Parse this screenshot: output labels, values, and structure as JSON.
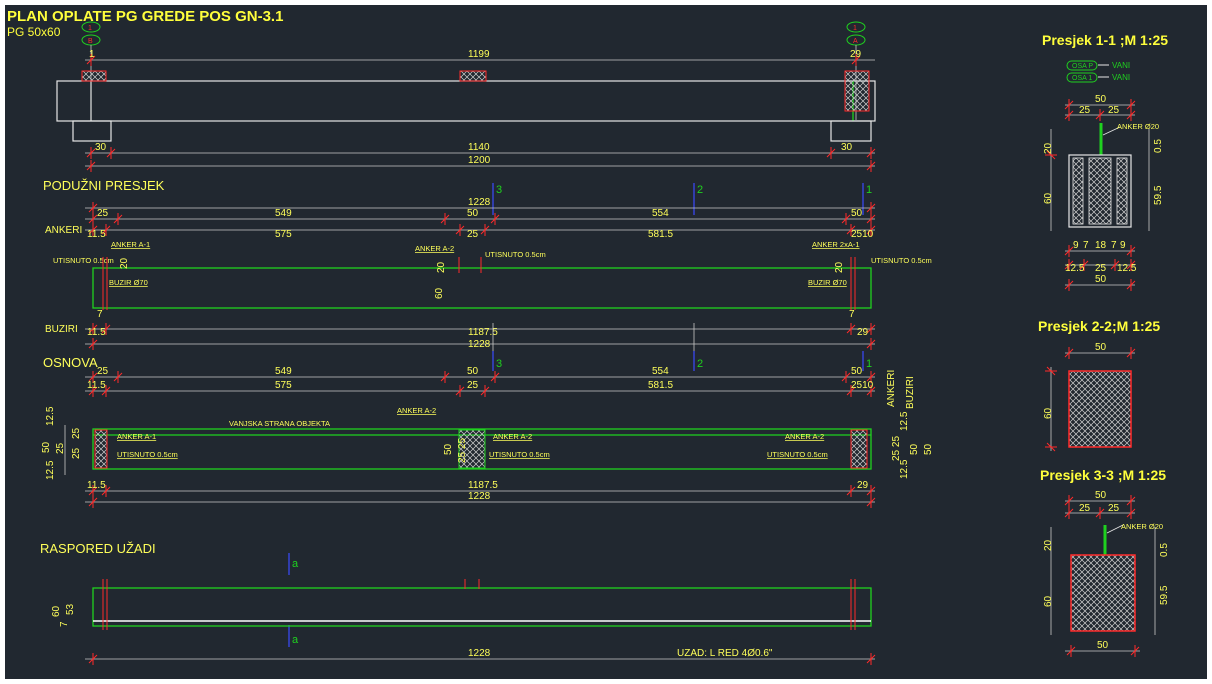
{
  "header": {
    "title": "PLAN OPLATE PG GREDE   POS GN-3.1",
    "subtitle": "PG 50x60"
  },
  "elevation": {
    "axis_top": [
      "1",
      "B",
      "1",
      "A"
    ],
    "dims": {
      "top": "1199",
      "left_mark": "1",
      "right_mark": "29",
      "b1": "30",
      "b2": "1140",
      "b3": "30",
      "total": "1200"
    }
  },
  "longitudinal": {
    "label": "PODUŽNI PRESJEK",
    "section_marks": [
      "3",
      "2",
      "1"
    ],
    "dims_row1": [
      "25",
      "549",
      "50",
      "554",
      "50"
    ],
    "dims_row2_total": "1228",
    "ankeri_label": "ANKERI",
    "ankeri_dims": [
      "11.5",
      "575",
      "25",
      "581.5",
      "2510"
    ],
    "anker_labels": [
      "ANKER A-1",
      "ANKER A-2",
      "ANKER 2xA-1"
    ],
    "utisnuto": [
      "UTISNUTO 0.5cm",
      "UTISNUTO 0.5cm",
      "UTISNUTO 0.5cm"
    ],
    "buzir": [
      "BUZIR Ø70",
      "BUZIR Ø70"
    ],
    "h_dims": [
      "20",
      "20",
      "20",
      "60",
      "7",
      "7"
    ],
    "buziri_label": "BUZIRI",
    "buziri_dims": [
      "11.5",
      "1187.5",
      "29"
    ],
    "buziri_total": "1228"
  },
  "plan": {
    "label": "OSNOVA",
    "section_marks": [
      "3",
      "2",
      "1"
    ],
    "dims_row1": [
      "25",
      "549",
      "50",
      "554",
      "50"
    ],
    "dims_row2": [
      "11.5",
      "575",
      "25",
      "581.5",
      "2510"
    ],
    "side_labels": [
      "ANKERI",
      "BUZIRI"
    ],
    "outer_text": "VANJSKA STRANA OBJEKTA",
    "anker_labels": [
      "ANKER A-1",
      "ANKER A-2",
      "ANKER A-2",
      "ANKER A-2"
    ],
    "utisnuto": [
      "UTISNUTO 0.5cm",
      "UTISNUTO 0.5cm",
      "UTISNUTO 0.5cm"
    ],
    "left_dims": [
      "12.5",
      "25",
      "12.5",
      "50",
      "25",
      "25"
    ],
    "right_dims": [
      "12.5",
      "25 25",
      "12.5",
      "50",
      "50"
    ],
    "mid_dims": [
      "50",
      "25 25"
    ],
    "bottom": [
      "11.5",
      "1187.5",
      "29"
    ],
    "bottom_total": "1228"
  },
  "strands": {
    "label": "RASPORED UŽADI",
    "mark": "a",
    "h_dims": [
      "60",
      "53",
      "7"
    ],
    "total": "1228",
    "uzad": "UZAD: L RED 4Ø0.6\""
  },
  "sections": [
    {
      "title": "Presjek 1-1 ;M 1:25",
      "legend": [
        {
          "tag": "OSA P",
          "text": "VANI"
        },
        {
          "tag": "OSA 1",
          "text": "VANI"
        }
      ],
      "top_dims": [
        "50",
        "25",
        "25"
      ],
      "anker": "ANKER Ø20",
      "left_dims": [
        "20",
        "60"
      ],
      "right_dims": [
        "0.5",
        "59.5"
      ],
      "bot_dims1": [
        "9",
        "7",
        "18",
        "7",
        "9"
      ],
      "bot_dims2": [
        "12.5",
        "25",
        "12.5"
      ],
      "bot_total": "50"
    },
    {
      "title": "Presjek 2-2;M 1:25",
      "top_dim": "50",
      "left_dim": "60"
    },
    {
      "title": "Presjek 3-3 ;M 1:25",
      "top_dims": [
        "50",
        "25",
        "25"
      ],
      "anker": "ANKER Ø20",
      "left_dims": [
        "20",
        "60"
      ],
      "right_dims": [
        "0.5",
        "59.5"
      ],
      "bot_total": "50"
    }
  ]
}
